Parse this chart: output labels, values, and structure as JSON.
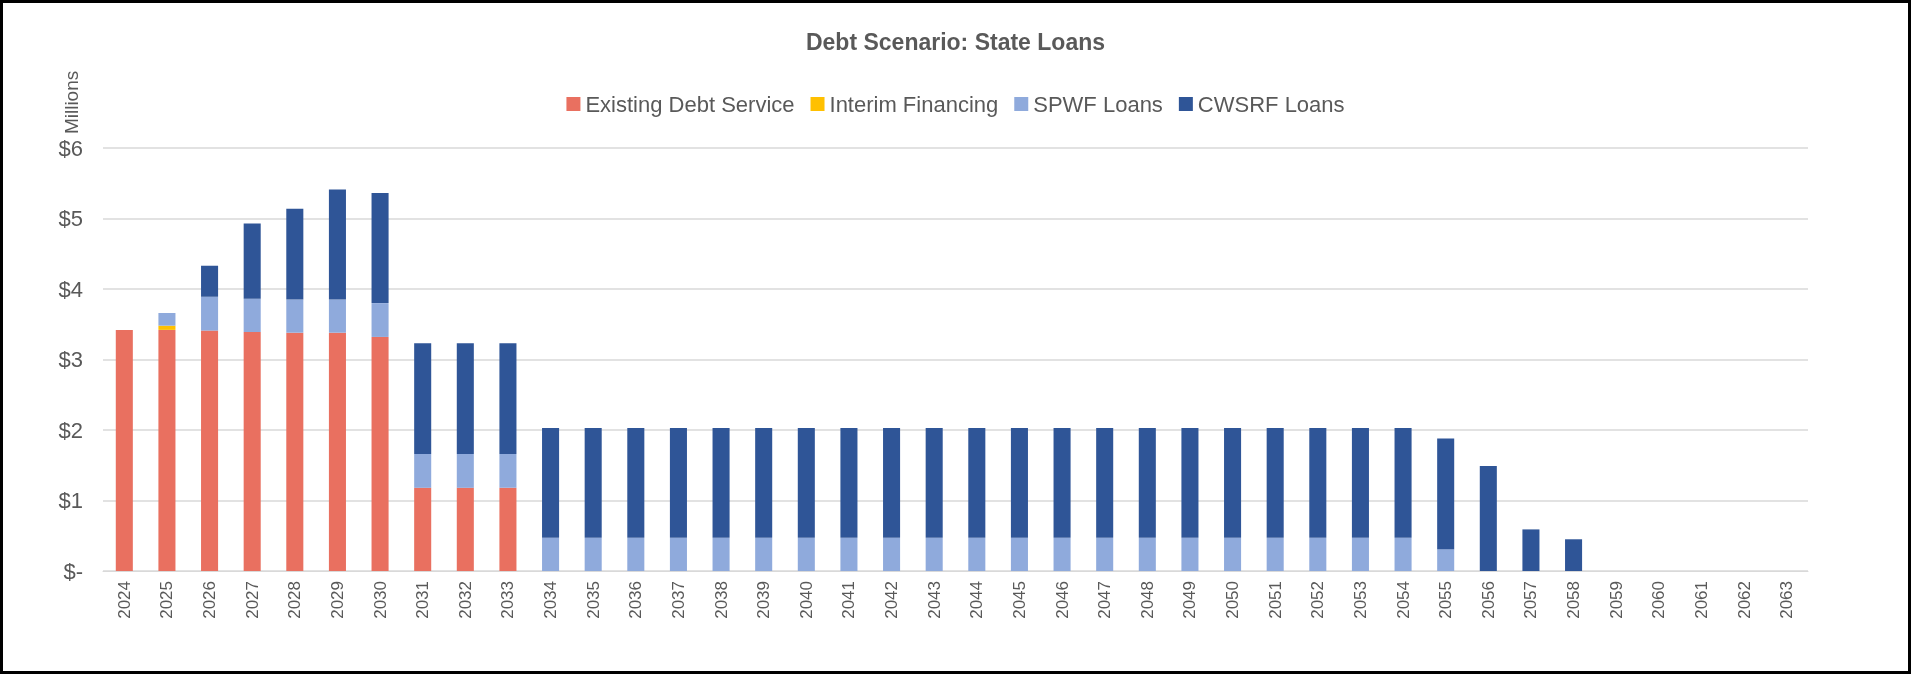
{
  "chart_data": {
    "type": "bar",
    "title": "Debt Scenario: State Loans",
    "ylabel": "Millions",
    "stacked": true,
    "legend": "top",
    "grid": "y",
    "categories": [
      "2024",
      "2025",
      "2026",
      "2027",
      "2028",
      "2029",
      "2030",
      "2031",
      "2032",
      "2033",
      "2034",
      "2035",
      "2036",
      "2037",
      "2038",
      "2039",
      "2040",
      "2041",
      "2042",
      "2043",
      "2044",
      "2045",
      "2046",
      "2047",
      "2048",
      "2049",
      "2050",
      "2051",
      "2052",
      "2053",
      "2054",
      "2055",
      "2056",
      "2057",
      "2058",
      "2059",
      "2060",
      "2061",
      "2062",
      "2063"
    ],
    "ylim": [
      0,
      6
    ],
    "yticks": [
      {
        "value": 0,
        "label": "$-"
      },
      {
        "value": 1,
        "label": "$1"
      },
      {
        "value": 2,
        "label": "$2"
      },
      {
        "value": 3,
        "label": "$3"
      },
      {
        "value": 4,
        "label": "$4"
      },
      {
        "value": 5,
        "label": "$5"
      },
      {
        "value": 6,
        "label": "$6"
      }
    ],
    "series": [
      {
        "name": "Existing Debt Service",
        "color": "#e97060",
        "values": [
          3.42,
          3.42,
          3.41,
          3.39,
          3.38,
          3.38,
          3.32,
          1.18,
          1.18,
          1.18,
          null,
          null,
          null,
          null,
          null,
          null,
          null,
          null,
          null,
          null,
          null,
          null,
          null,
          null,
          null,
          null,
          null,
          null,
          null,
          null,
          null,
          null,
          null,
          null,
          null,
          null,
          null,
          null,
          null,
          null
        ]
      },
      {
        "name": "Interim Financing",
        "color": "#ffc000",
        "values": [
          null,
          0.06,
          null,
          null,
          null,
          null,
          null,
          null,
          null,
          null,
          null,
          null,
          null,
          null,
          null,
          null,
          null,
          null,
          null,
          null,
          null,
          null,
          null,
          null,
          null,
          null,
          null,
          null,
          null,
          null,
          null,
          null,
          null,
          null,
          null,
          null,
          null,
          null,
          null,
          null
        ]
      },
      {
        "name": "SPWF Loans",
        "color": "#8faadc",
        "values": [
          null,
          0.18,
          0.48,
          0.47,
          0.47,
          0.47,
          0.48,
          0.48,
          0.48,
          0.48,
          0.47,
          0.47,
          0.47,
          0.47,
          0.47,
          0.47,
          0.47,
          0.47,
          0.47,
          0.47,
          0.47,
          0.47,
          0.47,
          0.47,
          0.47,
          0.47,
          0.47,
          0.47,
          0.47,
          0.47,
          0.47,
          0.31,
          null,
          null,
          null,
          null,
          null,
          null,
          null,
          null
        ]
      },
      {
        "name": "CWSRF Loans",
        "color": "#2f5597",
        "values": [
          null,
          null,
          0.44,
          1.07,
          1.29,
          1.56,
          1.56,
          1.57,
          1.57,
          1.57,
          1.56,
          1.56,
          1.56,
          1.56,
          1.56,
          1.56,
          1.56,
          1.56,
          1.56,
          1.56,
          1.56,
          1.56,
          1.56,
          1.56,
          1.56,
          1.56,
          1.56,
          1.56,
          1.56,
          1.56,
          1.56,
          1.57,
          1.49,
          0.59,
          0.45,
          null,
          null,
          null,
          null,
          null
        ]
      }
    ]
  }
}
